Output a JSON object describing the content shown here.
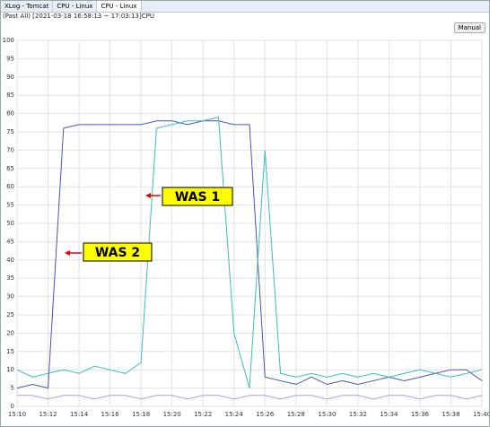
{
  "tabs": [
    "XLog - Tomcat",
    "CPU - Linux",
    "CPU - Linux"
  ],
  "header": {
    "subtitle": "(Past All) [2021-03-18 16:58:13 ~ 17:03:13]CPU",
    "button": "Manual"
  },
  "chart_data": {
    "type": "line",
    "x": [
      "15:10",
      "15:11",
      "15:12",
      "15:13",
      "15:14",
      "15:15",
      "15:16",
      "15:17",
      "15:18",
      "15:19",
      "15:20",
      "15:21",
      "15:22",
      "15:23",
      "15:24",
      "15:25",
      "15:26",
      "15:27",
      "15:28",
      "15:29",
      "15:30",
      "15:31",
      "15:32",
      "15:33",
      "15:34",
      "15:35",
      "15:36",
      "15:37",
      "15:38",
      "15:39",
      "15:40"
    ],
    "series": [
      {
        "color": "#4a55b0",
        "values": [
          5,
          6,
          5,
          76,
          77,
          77,
          77,
          77,
          77,
          78,
          78,
          77,
          78,
          78,
          77,
          77,
          8,
          7,
          6,
          8,
          6,
          7,
          6,
          7,
          8,
          7,
          8,
          9,
          10,
          10,
          7
        ]
      },
      {
        "color": "#3dbdb3",
        "values": [
          10,
          8,
          9,
          10,
          9,
          11,
          10,
          9,
          12,
          76,
          77,
          78,
          78,
          79,
          20,
          5,
          70,
          9,
          8,
          9,
          8,
          9,
          8,
          9,
          8,
          9,
          10,
          9,
          8,
          9,
          10
        ]
      },
      {
        "color": "#a4a4dc",
        "values": [
          3,
          3,
          2,
          3,
          3,
          2,
          3,
          3,
          2,
          3,
          3,
          2,
          3,
          3,
          2,
          3,
          3,
          2,
          3,
          3,
          2,
          3,
          3,
          2,
          3,
          3,
          2,
          3,
          3,
          2,
          3
        ]
      }
    ],
    "xlim": [
      "15:10",
      "15:40"
    ],
    "xticks": [
      "15:10",
      "15:12",
      "15:14",
      "15:16",
      "15:18",
      "15:20",
      "15:22",
      "15:24",
      "15:26",
      "15:28",
      "15:30",
      "15:32",
      "15:34",
      "15:36",
      "15:38",
      "15:40"
    ],
    "ylim": [
      0,
      100
    ],
    "yticks": [
      0,
      5,
      10,
      15,
      20,
      25,
      30,
      35,
      40,
      45,
      50,
      55,
      60,
      65,
      70,
      75,
      80,
      85,
      90,
      95,
      100
    ],
    "grid": true,
    "annotations": [
      "WAS 1",
      "WAS 2"
    ]
  }
}
